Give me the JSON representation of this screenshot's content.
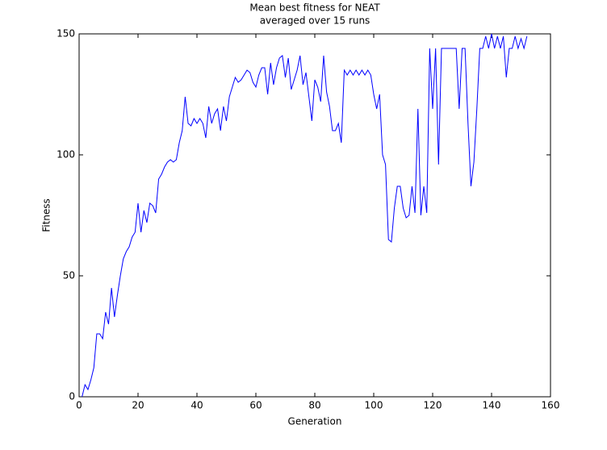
{
  "chart_data": {
    "type": "line",
    "title": "Mean best fitness for NEAT",
    "subtitle": "averaged over 15 runs",
    "xlabel": "Generation",
    "ylabel": "Fitness",
    "xlim": [
      0,
      160
    ],
    "xticks": [
      0,
      20,
      40,
      60,
      80,
      100,
      120,
      140,
      160
    ],
    "ylim": [
      0,
      150
    ],
    "yticks": [
      0,
      50,
      100,
      150
    ],
    "series": [
      {
        "color": "#0000ff",
        "x": [
          1,
          2,
          3,
          4,
          5,
          6,
          7,
          8,
          9,
          10,
          11,
          12,
          13,
          14,
          15,
          16,
          17,
          18,
          19,
          20,
          21,
          22,
          23,
          24,
          25,
          26,
          27,
          28,
          29,
          30,
          31,
          32,
          33,
          34,
          35,
          36,
          37,
          38,
          39,
          40,
          41,
          42,
          43,
          44,
          45,
          46,
          47,
          48,
          49,
          50,
          51,
          52,
          53,
          54,
          55,
          56,
          57,
          58,
          59,
          60,
          61,
          62,
          63,
          64,
          65,
          66,
          67,
          68,
          69,
          70,
          71,
          72,
          73,
          74,
          75,
          76,
          77,
          78,
          79,
          80,
          81,
          82,
          83,
          84,
          85,
          86,
          87,
          88,
          89,
          90,
          91,
          92,
          93,
          94,
          95,
          96,
          97,
          98,
          99,
          100,
          101,
          102,
          103,
          104,
          105,
          106,
          107,
          108,
          109,
          110,
          111,
          112,
          113,
          114,
          115,
          116,
          117,
          118,
          119,
          120,
          121,
          122,
          123,
          124,
          125,
          126,
          127,
          128,
          129,
          130,
          131,
          132,
          133,
          134,
          135,
          136,
          137,
          138,
          139,
          140,
          141,
          142,
          143,
          144,
          145,
          146,
          147,
          148,
          149,
          150,
          151,
          152
        ],
        "values": [
          0,
          5,
          3,
          7,
          12,
          26,
          26,
          24,
          35,
          30,
          45,
          33,
          42,
          50,
          57,
          60,
          62,
          66,
          68,
          80,
          68,
          77,
          72,
          80,
          79,
          76,
          90,
          92,
          95,
          97,
          98,
          97,
          98,
          105,
          110,
          124,
          113,
          112,
          115,
          113,
          115,
          113,
          107,
          120,
          113,
          117,
          119,
          110,
          120,
          114,
          124,
          128,
          132,
          130,
          131,
          133,
          135,
          134,
          130,
          128,
          133,
          136,
          136,
          125,
          138,
          129,
          136,
          140,
          141,
          132,
          140,
          127,
          131,
          135,
          141,
          129,
          134,
          124,
          114,
          131,
          128,
          122,
          141,
          126,
          120,
          110,
          110,
          113,
          105,
          135,
          133,
          135,
          133,
          135,
          133,
          135,
          133,
          135,
          133,
          125,
          119,
          125,
          100,
          96,
          65,
          64,
          78,
          87,
          87,
          78,
          74,
          75,
          87,
          76,
          119,
          75,
          87,
          76,
          144,
          119,
          144,
          96,
          144,
          144,
          144,
          144,
          144,
          144,
          119,
          144,
          144,
          113,
          87,
          97,
          119,
          144,
          144,
          149,
          144,
          150,
          144,
          149,
          144,
          149,
          132,
          144,
          144,
          149,
          144,
          148,
          144,
          149
        ]
      }
    ]
  }
}
